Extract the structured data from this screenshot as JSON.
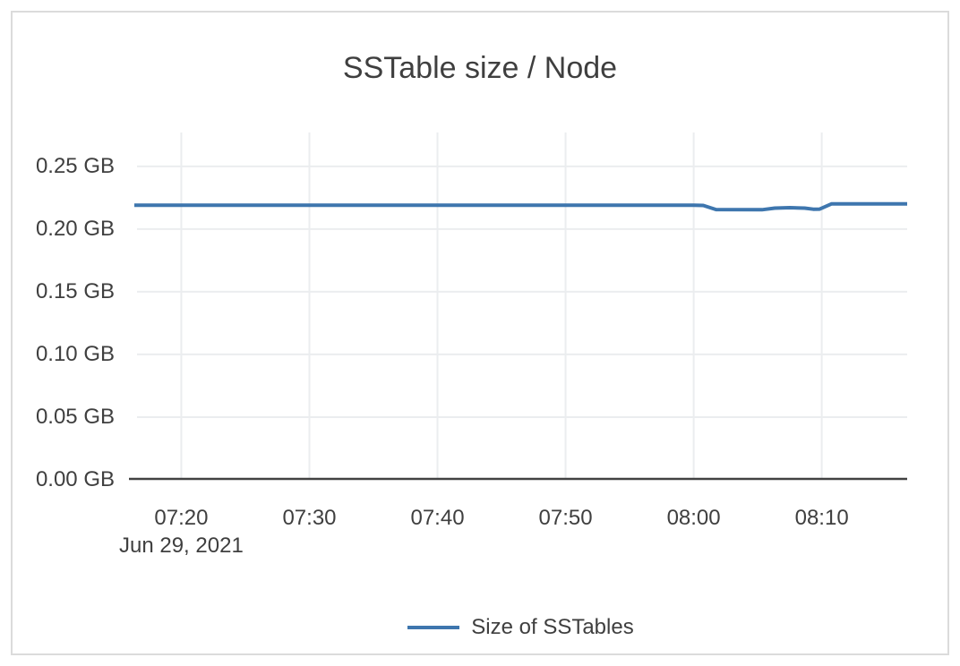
{
  "chart_data": {
    "type": "line",
    "title": "SSTable size / Node",
    "x_axis_date": "Jun 29, 2021",
    "x_ticks": [
      "07:20",
      "07:30",
      "07:40",
      "07:50",
      "08:00",
      "08:10"
    ],
    "y_ticks": [
      {
        "value": 0.25,
        "label": "0.25 GB"
      },
      {
        "value": 0.2,
        "label": "0.20 GB"
      },
      {
        "value": 0.15,
        "label": "0.15 GB"
      },
      {
        "value": 0.1,
        "label": "0.10 GB"
      },
      {
        "value": 0.05,
        "label": "0.05 GB"
      },
      {
        "value": 0.0,
        "label": "0.00 GB"
      }
    ],
    "x_range": [
      "07:16:20",
      "08:16:40"
    ],
    "y_range": [
      0,
      0.277
    ],
    "y_unit": "GB",
    "grid": true,
    "legend_position": "bottom-center",
    "colors": {
      "grid": "#ebedef",
      "axis_line": "#424242",
      "text": "#3f3f3f"
    },
    "series": [
      {
        "name": "Size of SSTables",
        "color": "#3e76ae",
        "points": [
          {
            "time": "07:16:20",
            "gb": 0.219
          },
          {
            "time": "07:20:00",
            "gb": 0.219
          },
          {
            "time": "07:30:00",
            "gb": 0.219
          },
          {
            "time": "07:40:00",
            "gb": 0.219
          },
          {
            "time": "07:50:00",
            "gb": 0.219
          },
          {
            "time": "08:00:00",
            "gb": 0.219
          },
          {
            "time": "08:00:45",
            "gb": 0.2188
          },
          {
            "time": "08:01:45",
            "gb": 0.2155
          },
          {
            "time": "08:05:20",
            "gb": 0.2154
          },
          {
            "time": "08:06:20",
            "gb": 0.2167
          },
          {
            "time": "08:07:30",
            "gb": 0.217
          },
          {
            "time": "08:08:40",
            "gb": 0.2167
          },
          {
            "time": "08:09:20",
            "gb": 0.2158
          },
          {
            "time": "08:09:50",
            "gb": 0.2159
          },
          {
            "time": "08:10:45",
            "gb": 0.22
          },
          {
            "time": "08:16:40",
            "gb": 0.22
          }
        ]
      }
    ]
  }
}
